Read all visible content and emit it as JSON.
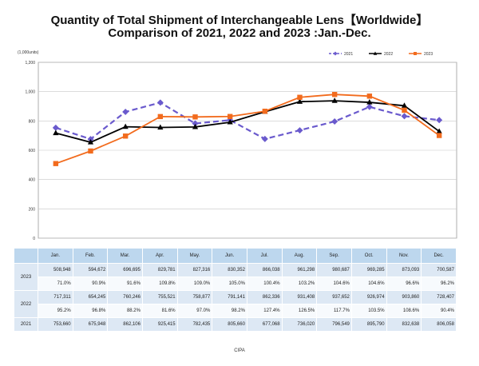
{
  "title_line1": "Quantity of Total Shipment of Interchangeable Lens【Worldwide】",
  "title_line2": "Comparison of 2021, 2022 and 2023 :Jan.-Dec.",
  "source": "CIPA",
  "chart_data": {
    "type": "line",
    "units_label": "(1,000units)",
    "categories": [
      "Jan.",
      "Feb.",
      "Mar.",
      "Apr.",
      "May.",
      "Jun.",
      "Jul.",
      "Aug.",
      "Sep.",
      "Oct.",
      "Nov.",
      "Dec."
    ],
    "ylim": [
      0,
      1200
    ],
    "yticks": [
      "0",
      "200",
      "400",
      "600",
      "800",
      "1,000",
      "1,200"
    ],
    "grid": true,
    "legend_position": "top-right",
    "series": [
      {
        "name": "2021",
        "color": "#6a5acd",
        "dash": "dashed",
        "marker": "diamond",
        "values": [
          753.66,
          675.948,
          862.106,
          925.415,
          782.435,
          805.66,
          677.068,
          736.02,
          796.549,
          895.79,
          832.638,
          806.058
        ]
      },
      {
        "name": "2022",
        "color": "#000000",
        "dash": "solid",
        "marker": "triangle",
        "values": [
          717.311,
          654.245,
          760.246,
          755.521,
          758.877,
          791.141,
          862.336,
          931.408,
          937.652,
          926.974,
          903.86,
          728.407
        ]
      },
      {
        "name": "2023",
        "color": "#f26b1d",
        "dash": "solid",
        "marker": "square",
        "values": [
          508.948,
          594.672,
          696.695,
          829.781,
          827.316,
          830.352,
          866.038,
          961.298,
          980.687,
          969.285,
          873.093,
          700.587
        ]
      }
    ]
  },
  "table": {
    "months": [
      "Jan.",
      "Feb.",
      "Mar.",
      "Apr.",
      "May.",
      "Jun.",
      "Jul.",
      "Aug.",
      "Sep.",
      "Oct.",
      "Nov.",
      "Dec."
    ],
    "rows": [
      {
        "year": "2023",
        "values": [
          "508,948",
          "594,672",
          "696,695",
          "829,781",
          "827,316",
          "830,352",
          "866,038",
          "961,298",
          "980,687",
          "969,285",
          "873,093",
          "700,587"
        ],
        "percents": [
          "71.0%",
          "90.9%",
          "91.6%",
          "109.8%",
          "109.0%",
          "105.0%",
          "100.4%",
          "103.2%",
          "104.6%",
          "104.6%",
          "96.6%",
          "96.2%"
        ]
      },
      {
        "year": "2022",
        "values": [
          "717,311",
          "654,245",
          "760,246",
          "755,521",
          "758,877",
          "791,141",
          "862,336",
          "931,408",
          "937,652",
          "926,974",
          "903,860",
          "728,407"
        ],
        "percents": [
          "95.2%",
          "96.8%",
          "88.2%",
          "81.6%",
          "97.0%",
          "98.2%",
          "127.4%",
          "126.5%",
          "117.7%",
          "103.5%",
          "108.6%",
          "90.4%"
        ]
      },
      {
        "year": "2021",
        "values": [
          "753,660",
          "675,948",
          "862,106",
          "925,415",
          "782,435",
          "805,660",
          "677,068",
          "736,020",
          "796,549",
          "895,790",
          "832,638",
          "806,058"
        ]
      }
    ]
  }
}
